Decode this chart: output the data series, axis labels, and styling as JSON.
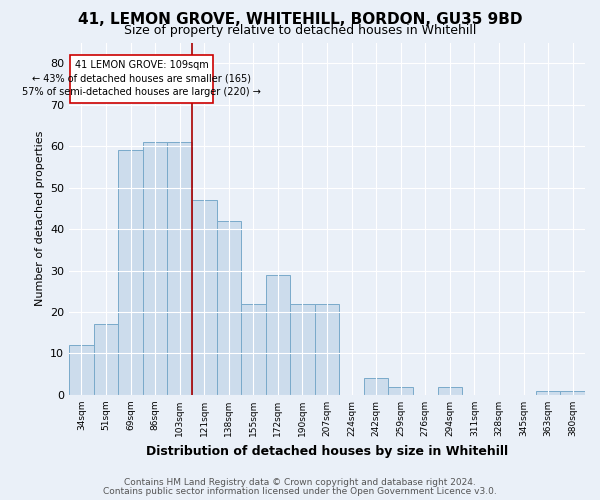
{
  "title": "41, LEMON GROVE, WHITEHILL, BORDON, GU35 9BD",
  "subtitle": "Size of property relative to detached houses in Whitehill",
  "xlabel": "Distribution of detached houses by size in Whitehill",
  "ylabel": "Number of detached properties",
  "footnote1": "Contains HM Land Registry data © Crown copyright and database right 2024.",
  "footnote2": "Contains public sector information licensed under the Open Government Licence v3.0.",
  "bar_color": "#ccdcec",
  "bar_edge_color": "#7aaaca",
  "annotation_box_color": "#cc0000",
  "vline_color": "#aa0000",
  "background_color": "#eaf0f8",
  "categories": [
    "34sqm",
    "51sqm",
    "69sqm",
    "86sqm",
    "103sqm",
    "121sqm",
    "138sqm",
    "155sqm",
    "172sqm",
    "190sqm",
    "207sqm",
    "224sqm",
    "242sqm",
    "259sqm",
    "276sqm",
    "294sqm",
    "311sqm",
    "328sqm",
    "345sqm",
    "363sqm",
    "380sqm"
  ],
  "values": [
    12,
    17,
    59,
    61,
    61,
    47,
    42,
    22,
    29,
    22,
    22,
    0,
    4,
    2,
    0,
    2,
    0,
    0,
    0,
    1,
    1
  ],
  "ylim": [
    0,
    85
  ],
  "yticks": [
    0,
    10,
    20,
    30,
    40,
    50,
    60,
    70,
    80
  ],
  "property_label": "41 LEMON GROVE: 109sqm",
  "annotation_line1": "← 43% of detached houses are smaller (165)",
  "annotation_line2": "57% of semi-detached houses are larger (220) →",
  "vline_bar_index": 4,
  "footnote_color": "#555555"
}
